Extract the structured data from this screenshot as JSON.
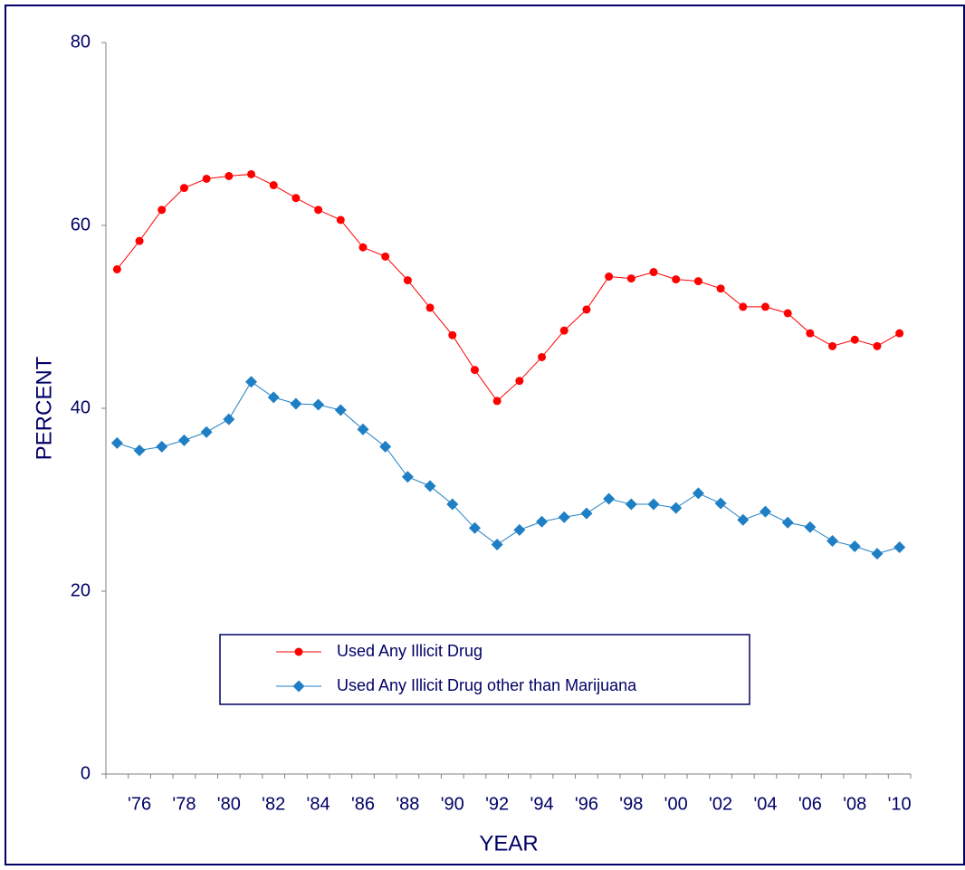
{
  "chart_data": {
    "type": "line",
    "xlabel": "YEAR",
    "ylabel": "PERCENT",
    "categories": [
      null,
      "'76",
      null,
      "'78",
      null,
      "'80",
      null,
      "'82",
      null,
      "'84",
      null,
      "'86",
      null,
      "'88",
      null,
      "'90",
      null,
      "'92",
      null,
      "'94",
      null,
      "'96",
      null,
      "'98",
      null,
      "'00",
      null,
      "'02",
      null,
      "'04",
      null,
      "'06",
      null,
      "'08",
      null,
      "'10"
    ],
    "series": [
      {
        "name": "Used Any Illicit Drug",
        "color": "#ff0000",
        "marker": "circle",
        "values": [
          55.2,
          58.3,
          61.7,
          64.1,
          65.1,
          65.4,
          65.6,
          64.4,
          63.0,
          61.7,
          60.6,
          57.6,
          56.6,
          54.0,
          51.0,
          48.0,
          44.2,
          40.8,
          43.0,
          45.6,
          48.5,
          50.8,
          54.4,
          54.2,
          54.9,
          54.1,
          53.9,
          53.1,
          51.1,
          51.1,
          50.4,
          48.2,
          46.8,
          47.5,
          46.8,
          48.2
        ]
      },
      {
        "name": "Used Any Illicit Drug other than Marijuana",
        "color": "#1f7fc4",
        "marker": "diamond",
        "values": [
          36.2,
          35.4,
          35.8,
          36.5,
          37.4,
          38.8,
          42.9,
          41.2,
          40.5,
          40.4,
          39.8,
          37.7,
          35.8,
          32.5,
          31.5,
          29.5,
          26.9,
          25.1,
          26.7,
          27.6,
          28.1,
          28.5,
          30.1,
          29.5,
          29.5,
          29.1,
          30.7,
          29.6,
          27.8,
          28.7,
          27.5,
          27.0,
          25.5,
          24.9,
          24.1,
          24.8
        ]
      }
    ],
    "ylim": [
      0,
      80
    ],
    "yticks": [
      0,
      20,
      40,
      60,
      80
    ],
    "grid": false
  }
}
